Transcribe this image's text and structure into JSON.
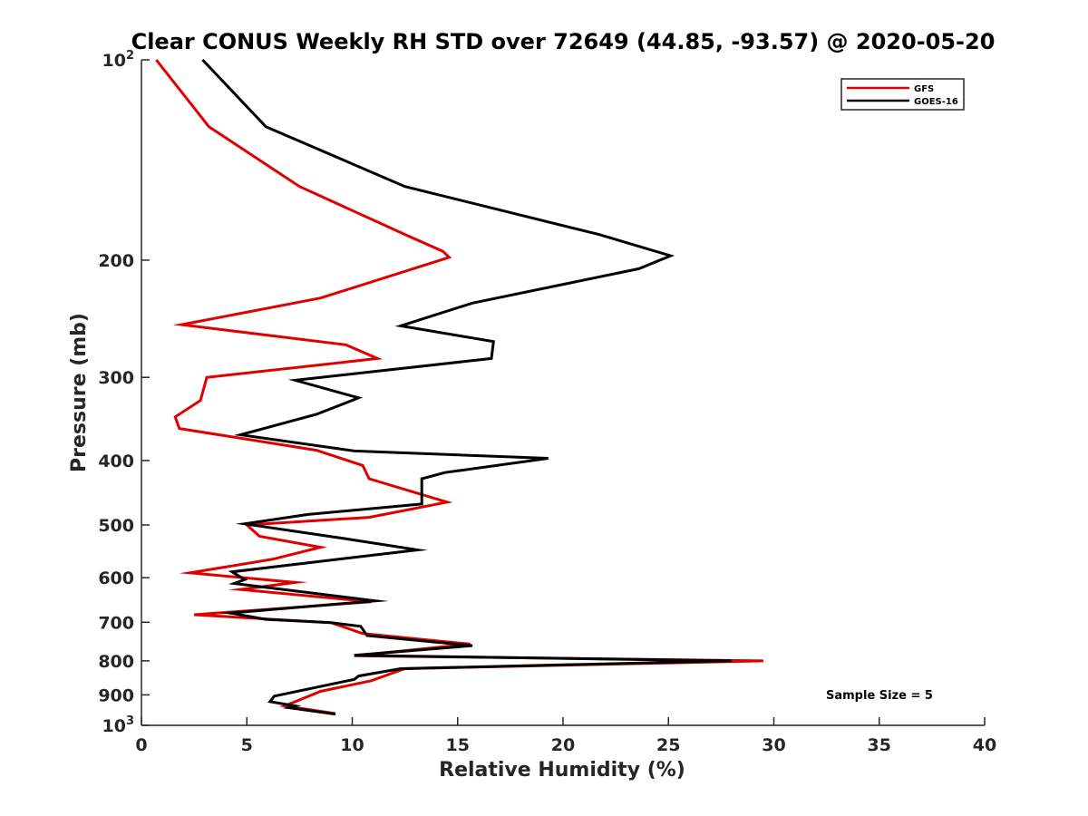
{
  "chart_data": {
    "type": "line",
    "title": "Clear CONUS Weekly RH STD over 72649 (44.85, -93.57) @ 2020-05-20",
    "xlabel": "Relative Humidity (%)",
    "ylabel": "Pressure (mb)",
    "xlim": [
      0,
      40
    ],
    "ylim": [
      100,
      1000
    ],
    "y_scale": "log",
    "y_reversed": true,
    "x_ticks": [
      0,
      5,
      10,
      15,
      20,
      25,
      30,
      35,
      40
    ],
    "y_ticks": [
      {
        "value": 100,
        "base": "10",
        "exp": "2"
      },
      {
        "value": 200,
        "label": "200"
      },
      {
        "value": 300,
        "label": "300"
      },
      {
        "value": 400,
        "label": "400"
      },
      {
        "value": 500,
        "label": "500"
      },
      {
        "value": 600,
        "label": "600"
      },
      {
        "value": 700,
        "label": "700"
      },
      {
        "value": 800,
        "label": "800"
      },
      {
        "value": 900,
        "label": "900"
      },
      {
        "value": 1000,
        "base": "10",
        "exp": "3"
      }
    ],
    "grid": false,
    "legend_position": "top-right",
    "annotation": "Sample Size = 5",
    "series": [
      {
        "name": "GFS",
        "color": "#e00000",
        "x": [
          0.7,
          3.2,
          7.5,
          12.5,
          14.3,
          14.6,
          8.5,
          1.9,
          9.7,
          11.2,
          3.1,
          2.8,
          1.6,
          1.8,
          8.3,
          10.5,
          10.8,
          14.5,
          10.8,
          5.0,
          5.6,
          8.5,
          6.2,
          2.3,
          7.3,
          4.7,
          10.9,
          2.5,
          9.0,
          10.5,
          15.6,
          10.1,
          29.5,
          12.5,
          10.9,
          8.5,
          6.8,
          9.2
        ],
        "y": [
          100,
          126,
          155,
          183,
          194,
          198,
          228,
          250,
          268,
          281,
          300,
          325,
          344,
          358,
          386,
          407,
          426,
          462,
          487,
          500,
          520,
          540,
          563,
          590,
          610,
          625,
          652,
          682,
          701,
          728,
          755,
          786,
          800,
          822,
          857,
          889,
          935,
          960
        ]
      },
      {
        "name": "GOES-16",
        "color": "#000000",
        "x": [
          2.9,
          5.9,
          12.5,
          21.7,
          25.1,
          23.6,
          15.7,
          12.3,
          16.7,
          16.6,
          7.3,
          10.3,
          8.3,
          4.7,
          10.1,
          19.3,
          14.4,
          13.3,
          13.3,
          7.9,
          4.9,
          9.8,
          13.1,
          4.3,
          4.9,
          4.4,
          11.1,
          4.2,
          5.9,
          9.0,
          10.4,
          10.7,
          15.7,
          10.1,
          28.0,
          12.3,
          10.3,
          10.1,
          6.3,
          6.1,
          7.3,
          7.0,
          9.2
        ],
        "y": [
          100,
          126,
          155,
          183,
          197,
          206,
          232,
          251,
          265,
          281,
          303,
          322,
          341,
          366,
          387,
          397,
          417,
          426,
          465,
          482,
          498,
          525,
          545,
          588,
          604,
          612,
          650,
          678,
          693,
          701,
          710,
          733,
          759,
          785,
          800,
          822,
          843,
          853,
          904,
          921,
          935,
          941,
          962
        ]
      }
    ]
  }
}
